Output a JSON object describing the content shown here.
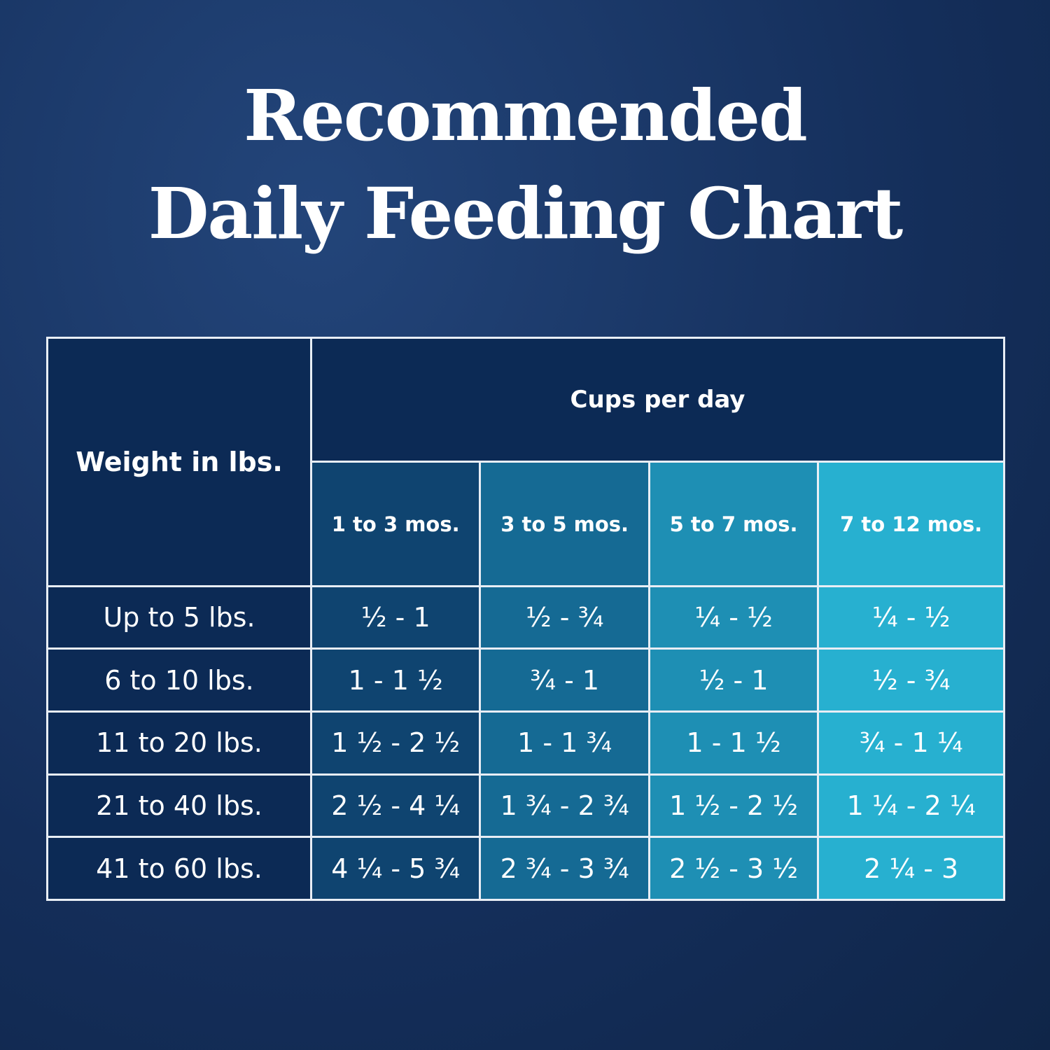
{
  "header": {
    "title_line1": "Recommended",
    "title_line2": "Daily Feeding Chart"
  },
  "table": {
    "weight_header": "Weight in lbs.",
    "cups_header": "Cups per day",
    "columns": [
      "1 to 3 mos.",
      "3 to 5 mos.",
      "5 to 7 mos.",
      "7 to 12 mos."
    ],
    "rows": [
      [
        "Up to 5 lbs.",
        "½  - 1",
        "½  - ¾",
        "¼  - ½",
        "¼  - ½"
      ],
      [
        "6 to 10 lbs.",
        "1  - 1 ½",
        "¾ - 1",
        "½ - 1",
        "½ - ¾"
      ],
      [
        "11 to 20 lbs.",
        "1 ½  - 2 ½",
        "1 - 1 ¾",
        "1 - 1 ½",
        "¾ - 1 ¼"
      ],
      [
        "21 to 40 lbs.",
        "2 ½ - 4 ¼",
        "1 ¾ - 2 ¾",
        "1 ½ - 2 ½",
        "1 ¼ - 2 ¼"
      ],
      [
        "41 to 60 lbs.",
        "4 ¼  - 5 ¾",
        "2 ¾  - 3 ¾",
        "2 ½  - 3 ½",
        "2 ¼  - 3"
      ]
    ]
  }
}
